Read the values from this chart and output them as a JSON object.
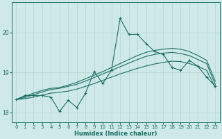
{
  "xlabel": "Humidex (Indice chaleur)",
  "background_color": "#cee9e8",
  "grid_color": "#b8d8d7",
  "line_color": "#1a6e64",
  "x_values": [
    0,
    1,
    2,
    3,
    4,
    5,
    6,
    7,
    8,
    9,
    10,
    11,
    12,
    13,
    14,
    15,
    16,
    17,
    18,
    19,
    20,
    21,
    22,
    23
  ],
  "main_line": [
    18.32,
    18.42,
    18.42,
    18.42,
    18.38,
    18.02,
    18.3,
    18.12,
    18.48,
    19.02,
    18.72,
    19.05,
    20.35,
    19.95,
    19.95,
    19.72,
    19.52,
    19.45,
    19.12,
    19.05,
    19.3,
    19.15,
    18.88,
    18.65
  ],
  "smooth_line1": [
    18.32,
    18.4,
    18.48,
    18.55,
    18.6,
    18.62,
    18.68,
    18.75,
    18.84,
    18.93,
    19.02,
    19.12,
    19.22,
    19.32,
    19.42,
    19.5,
    19.55,
    19.58,
    19.6,
    19.58,
    19.52,
    19.42,
    19.3,
    18.78
  ],
  "smooth_line2": [
    18.32,
    18.37,
    18.44,
    18.51,
    18.57,
    18.6,
    18.65,
    18.7,
    18.78,
    18.87,
    18.96,
    19.05,
    19.14,
    19.23,
    19.32,
    19.4,
    19.45,
    19.48,
    19.5,
    19.47,
    19.42,
    19.32,
    19.22,
    18.7
  ],
  "smooth_line3": [
    18.32,
    18.34,
    18.38,
    18.43,
    18.48,
    18.5,
    18.53,
    18.58,
    18.65,
    18.72,
    18.8,
    18.88,
    18.96,
    19.03,
    19.1,
    19.16,
    19.21,
    19.25,
    19.28,
    19.27,
    19.22,
    19.15,
    19.05,
    18.62
  ],
  "ylim": [
    17.75,
    20.75
  ],
  "yticks": [
    18,
    19,
    20
  ],
  "xticks": [
    0,
    1,
    2,
    3,
    4,
    5,
    6,
    7,
    8,
    9,
    10,
    11,
    12,
    13,
    14,
    15,
    16,
    17,
    18,
    19,
    20,
    21,
    22,
    23
  ]
}
